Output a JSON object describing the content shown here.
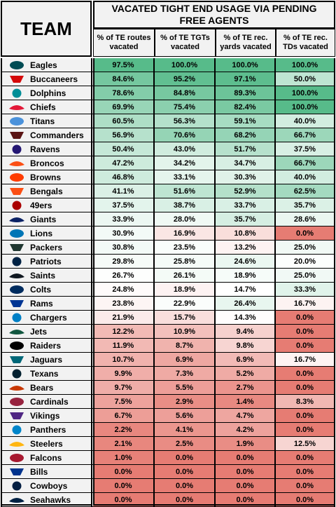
{
  "header": {
    "team_label": "TEAM",
    "title": "VACATED TIGHT END USAGE VIA PENDING FREE AGENTS"
  },
  "chart_data": {
    "type": "table",
    "title": "VACATED TIGHT END USAGE VIA PENDING FREE AGENTS",
    "columns": [
      "% of TE routes vacated",
      "% of TE TGTs vacated",
      "% of TE rec. yards vacated",
      "% of TE rec. TDs vacated"
    ],
    "rows": [
      {
        "team": "Eagles",
        "logo": "eagles-logo",
        "color": "#004C54",
        "values": [
          "97.5%",
          "100.0%",
          "100.0%",
          "100.0%"
        ]
      },
      {
        "team": "Buccaneers",
        "logo": "buccaneers-logo",
        "color": "#D50A0A",
        "values": [
          "84.6%",
          "95.2%",
          "97.1%",
          "50.0%"
        ]
      },
      {
        "team": "Dolphins",
        "logo": "dolphins-logo",
        "color": "#008E97",
        "values": [
          "78.6%",
          "84.8%",
          "89.3%",
          "100.0%"
        ]
      },
      {
        "team": "Chiefs",
        "logo": "chiefs-logo",
        "color": "#E31837",
        "values": [
          "69.9%",
          "75.4%",
          "82.4%",
          "100.0%"
        ]
      },
      {
        "team": "Titans",
        "logo": "titans-logo",
        "color": "#4B92DB",
        "values": [
          "60.5%",
          "56.3%",
          "59.1%",
          "40.0%"
        ]
      },
      {
        "team": "Commanders",
        "logo": "commanders-logo",
        "color": "#5A1414",
        "values": [
          "56.9%",
          "70.6%",
          "68.2%",
          "66.7%"
        ]
      },
      {
        "team": "Ravens",
        "logo": "ravens-logo",
        "color": "#241773",
        "values": [
          "50.4%",
          "43.0%",
          "51.7%",
          "37.5%"
        ]
      },
      {
        "team": "Broncos",
        "logo": "broncos-logo",
        "color": "#FB4F14",
        "values": [
          "47.2%",
          "34.2%",
          "34.7%",
          "66.7%"
        ]
      },
      {
        "team": "Browns",
        "logo": "browns-logo",
        "color": "#FF3C00",
        "values": [
          "46.8%",
          "33.1%",
          "30.3%",
          "40.0%"
        ]
      },
      {
        "team": "Bengals",
        "logo": "bengals-logo",
        "color": "#FB4F14",
        "values": [
          "41.1%",
          "51.6%",
          "52.9%",
          "62.5%"
        ]
      },
      {
        "team": "49ers",
        "logo": "49ers-logo",
        "color": "#AA0000",
        "values": [
          "37.5%",
          "38.7%",
          "33.7%",
          "35.7%"
        ]
      },
      {
        "team": "Giants",
        "logo": "giants-logo",
        "color": "#0B2265",
        "values": [
          "33.9%",
          "28.0%",
          "35.7%",
          "28.6%"
        ]
      },
      {
        "team": "Lions",
        "logo": "lions-logo",
        "color": "#0076B6",
        "values": [
          "30.9%",
          "16.9%",
          "10.8%",
          "0.0%"
        ]
      },
      {
        "team": "Packers",
        "logo": "packers-logo",
        "color": "#203731",
        "values": [
          "30.8%",
          "23.5%",
          "13.2%",
          "25.0%"
        ]
      },
      {
        "team": "Patriots",
        "logo": "patriots-logo",
        "color": "#002244",
        "values": [
          "29.8%",
          "25.8%",
          "24.6%",
          "20.0%"
        ]
      },
      {
        "team": "Saints",
        "logo": "saints-logo",
        "color": "#101820",
        "values": [
          "26.7%",
          "26.1%",
          "18.9%",
          "25.0%"
        ]
      },
      {
        "team": "Colts",
        "logo": "colts-logo",
        "color": "#002C5F",
        "values": [
          "24.8%",
          "18.9%",
          "14.7%",
          "33.3%"
        ]
      },
      {
        "team": "Rams",
        "logo": "rams-logo",
        "color": "#003594",
        "values": [
          "23.8%",
          "22.9%",
          "26.4%",
          "16.7%"
        ]
      },
      {
        "team": "Chargers",
        "logo": "chargers-logo",
        "color": "#0080C6",
        "values": [
          "21.9%",
          "15.7%",
          "14.3%",
          "0.0%"
        ]
      },
      {
        "team": "Jets",
        "logo": "jets-logo",
        "color": "#125740",
        "values": [
          "12.2%",
          "10.9%",
          "9.4%",
          "0.0%"
        ]
      },
      {
        "team": "Raiders",
        "logo": "raiders-logo",
        "color": "#000000",
        "values": [
          "11.9%",
          "8.7%",
          "9.8%",
          "0.0%"
        ]
      },
      {
        "team": "Jaguars",
        "logo": "jaguars-logo",
        "color": "#006778",
        "values": [
          "10.7%",
          "6.9%",
          "6.9%",
          "16.7%"
        ]
      },
      {
        "team": "Texans",
        "logo": "texans-logo",
        "color": "#03202F",
        "values": [
          "9.9%",
          "7.3%",
          "5.2%",
          "0.0%"
        ]
      },
      {
        "team": "Bears",
        "logo": "bears-logo",
        "color": "#C83803",
        "values": [
          "9.7%",
          "5.5%",
          "2.7%",
          "0.0%"
        ]
      },
      {
        "team": "Cardinals",
        "logo": "cardinals-logo",
        "color": "#97233F",
        "values": [
          "7.5%",
          "2.9%",
          "1.4%",
          "8.3%"
        ]
      },
      {
        "team": "Vikings",
        "logo": "vikings-logo",
        "color": "#4F2683",
        "values": [
          "6.7%",
          "5.6%",
          "4.7%",
          "0.0%"
        ]
      },
      {
        "team": "Panthers",
        "logo": "panthers-logo",
        "color": "#0085CA",
        "values": [
          "2.2%",
          "4.1%",
          "4.2%",
          "0.0%"
        ]
      },
      {
        "team": "Steelers",
        "logo": "steelers-logo",
        "color": "#FFB612",
        "values": [
          "2.1%",
          "2.5%",
          "1.9%",
          "12.5%"
        ]
      },
      {
        "team": "Falcons",
        "logo": "falcons-logo",
        "color": "#A71930",
        "values": [
          "1.0%",
          "0.0%",
          "0.0%",
          "0.0%"
        ]
      },
      {
        "team": "Bills",
        "logo": "bills-logo",
        "color": "#00338D",
        "values": [
          "0.0%",
          "0.0%",
          "0.0%",
          "0.0%"
        ]
      },
      {
        "team": "Cowboys",
        "logo": "cowboys-logo",
        "color": "#041E42",
        "values": [
          "0.0%",
          "0.0%",
          "0.0%",
          "0.0%"
        ]
      },
      {
        "team": "Seahawks",
        "logo": "seahawks-logo",
        "color": "#002244",
        "values": [
          "0.0%",
          "0.0%",
          "0.0%",
          "0.0%"
        ]
      }
    ],
    "color_scale": {
      "low": "#e67c73",
      "mid": "#ffffff",
      "high": "#57bb8a"
    }
  }
}
